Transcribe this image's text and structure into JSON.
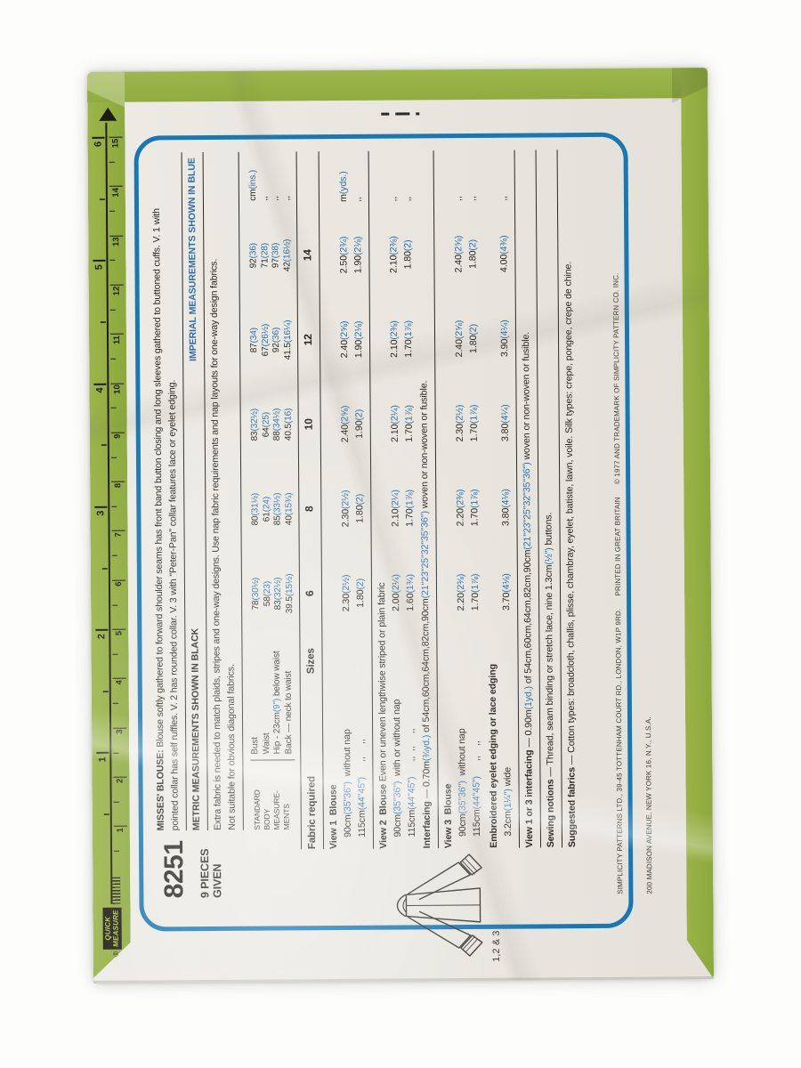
{
  "colors": {
    "green": "#93ad43",
    "frame_blue": "#1878b3",
    "imperial_blue": "#2e6ea8",
    "paper": "#e9e7e0",
    "ink": "#26251f"
  },
  "ruler": {
    "reg": "®",
    "label_line1": "QUICK",
    "label_line2": "MEASURE",
    "inch": [
      "1",
      "2",
      "3",
      "4",
      "5",
      "6"
    ],
    "cm": [
      "1",
      "2",
      "3",
      "4",
      "5",
      "6",
      "7",
      "8",
      "9",
      "10",
      "11",
      "12",
      "13",
      "14",
      "15"
    ]
  },
  "header": {
    "number": "8251",
    "pieces_line1": "9 PIECES",
    "pieces_line2": "GIVEN",
    "desc_line1_lead": "MISSES' BLOUSE:",
    "desc_line1_rest": " Blouse softly gathered to forward shoulder seams has front band button closing and long sleeves gathered to buttoned cuffs. V. 1 with",
    "desc_line2": "pointed collar has self ruffles. V. 2 has rounded collar. V. 3 with \"Peter-Pan\" collar features lace or eyelet edging.",
    "metric_note": "METRIC MEASUREMENTS SHOWN IN BLACK",
    "imperial_note": "IMPERIAL MEASUREMENTS SHOWN IN BLUE",
    "extra_fabric": "Extra fabric is needed to match plaids, stripes and one-way designs. Use nap fabric requirements and nap layouts for one-way design fabrics.",
    "not_suitable": "Not suitable for obvious diagonal fabrics."
  },
  "body_measurements": {
    "label_lines": [
      "STANDARD",
      "BODY",
      "MEASURE-",
      "MENTS"
    ],
    "row_labels": [
      "Bust",
      "Waist",
      "Hip - 23cm(9\") below waist",
      "Back — neck to waist"
    ],
    "columns": [
      [
        "78(30½)",
        "58(23)",
        "83(32½)",
        "39.5(15½)"
      ],
      [
        "80(31½)",
        "61(24)",
        "85(33½)",
        "40(15¾)"
      ],
      [
        "83(32½)",
        "64(25)",
        "88(34½)",
        "40.5(16)"
      ],
      [
        "87(34)",
        "67(26½)",
        "92(36)",
        "41.5(16¼)"
      ],
      [
        "92(36)",
        "71(28)",
        "97(38)",
        "42(16½)"
      ]
    ],
    "units": [
      "cm(ins.)",
      ",,",
      ",,",
      ",,"
    ]
  },
  "size_header": {
    "fabric_required": "Fabric required",
    "sizes_label": "Sizes",
    "sizes": [
      "6",
      "8",
      "10",
      "12",
      "14"
    ]
  },
  "fabric": {
    "view1_title": "View 1  Blouse",
    "view1_rows": [
      {
        "label": "90cm(35\"36\")  without nap",
        "values": [
          "2.30(2½)",
          "2.30(2½)",
          "2.40(2⅝)",
          "2.40(2⅝)",
          "2.50(2¾)"
        ],
        "unit": "m(yds.)"
      },
      {
        "label": "115cm(44\"45\")      ,,     ,,",
        "values": [
          "1.80(2)",
          "1.80(2)",
          "1.90(2)",
          "1.90(2⅛)",
          "1.90(2⅛)"
        ],
        "unit": ",,"
      }
    ],
    "view2_title": "View 2  Blouse",
    "view2_note": "  Even or uneven lengthwise striped or plain fabric",
    "view2_rows": [
      {
        "label": "90cm(35\"36\")  with or without nap",
        "values": [
          "2.00(2¼)",
          "2.10(2¼)",
          "2.10(2¼)",
          "2.10(2⅜)",
          "2.10(2⅜)"
        ],
        "unit": ",,"
      },
      {
        "label": "115cm(44\"45\")      ,,  ,,     ,,",
        "values": [
          "1.60(1¾)",
          "1.70(1⅞)",
          "1.70(1⅞)",
          "1.70(1⅞)",
          "1.80(2)"
        ],
        "unit": ",,"
      }
    ],
    "interfacing_lead": "Interfacing",
    "interfacing_rest": " — 0.70m(¾yd.) of 54cm,60cm,64cm,82cm,90cm(21\"23\"25\"32\"35\"36\") woven or non-woven or fusible.",
    "view3_title": "View 3  Blouse",
    "view3_rows": [
      {
        "label": "90cm(35\"36\")  without nap",
        "values": [
          "2.20(2⅜)",
          "2.20(2⅜)",
          "2.30(2½)",
          "2.40(2⅝)",
          "2.40(2⅝)"
        ],
        "unit": ",,"
      },
      {
        "label": "115cm(44\"45\")      ,,    ,,",
        "values": [
          "1.70(1⅞)",
          "1.70(1⅞)",
          "1.70(1⅞)",
          "1.80(2)",
          "1.80(2)"
        ],
        "unit": ",,"
      }
    ],
    "eyelet_title": "Embroidered eyelet edging or lace edging",
    "eyelet_rows": [
      {
        "label": "3.2cm(1¼\") wide",
        "values": [
          "3.70(4⅛)",
          "3.80(4⅛)",
          "3.80(4¼)",
          "3.90(4¼)",
          "4.00(4⅜)"
        ],
        "unit": ",,"
      }
    ],
    "interfacing13_lead": "View 1 or 3 interfacing",
    "interfacing13_rest": " — 0.90m(1yd.) of 54cm,60cm,64cm,82cm,90cm(21\"23\"25\"32\"35\"36\") woven or non-woven or fusible.",
    "sewing_lead": "Sewing notions",
    "sewing_rest": " — Thread, seam binding or stretch lace, nine 1.3cm(½\") buttons.",
    "suggested_lead": "Suggested fabrics",
    "suggested_rest": " — Cotton types: broadcloth, challis, plisse, chambray, eyelet, batiste, lawn, voile. Silk types: crepe, pongee, crepe de chine."
  },
  "illustration": {
    "label": "1,2 & 3"
  },
  "footer": {
    "line1": "SIMPLICITY PATTERNS LTD., 39-45 TOTTENHAM COURT RD., LONDON, W1P 9RD.      PRINTED IN GREAT BRITAIN      © 1977 AND TRADEMARK OF SIMPLICITY PATTERN CO. INC.",
    "line2": "200 MADISON AVENUE, NEW YORK 16, N.Y., U.S.A."
  }
}
